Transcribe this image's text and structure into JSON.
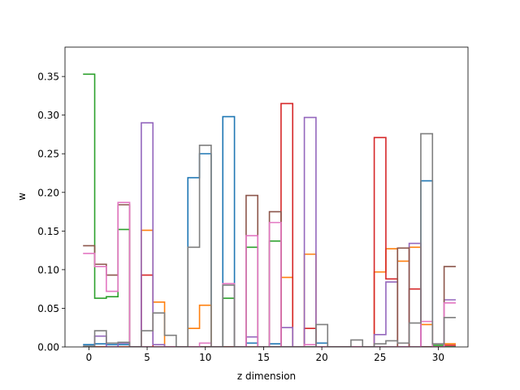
{
  "chart_data": {
    "type": "step",
    "xlabel": "z dimension",
    "ylabel": "w",
    "xlim": [
      -2.05,
      32.55
    ],
    "ylim": [
      0,
      0.388
    ],
    "x_ticks": [
      0,
      5,
      10,
      15,
      20,
      25,
      30
    ],
    "y_ticks": [
      0.0,
      0.05,
      0.1,
      0.15,
      0.2,
      0.25,
      0.3,
      0.35
    ],
    "grid": false,
    "x": [
      0,
      1,
      2,
      3,
      4,
      5,
      6,
      7,
      8,
      9,
      10,
      11,
      12,
      13,
      14,
      15,
      16,
      17,
      18,
      19,
      20,
      21,
      22,
      23,
      24,
      25,
      26,
      27,
      28,
      29,
      30,
      31
    ],
    "series": [
      {
        "color": "#1f77b4",
        "values": [
          0.003,
          0.004,
          0.003,
          0.003,
          0,
          0,
          0,
          0,
          0,
          0.219,
          0.25,
          0,
          0.298,
          0,
          0.005,
          0,
          0.004,
          0,
          0,
          0,
          0.005,
          0,
          0,
          0,
          0,
          0,
          0,
          0,
          0,
          0.215,
          0,
          0
        ]
      },
      {
        "color": "#ff7f0e",
        "values": [
          0,
          0,
          0,
          0,
          0,
          0.151,
          0.058,
          0,
          0,
          0.024,
          0.054,
          0,
          0,
          0,
          0,
          0,
          0,
          0.09,
          0,
          0.12,
          0,
          0,
          0,
          0,
          0,
          0.097,
          0.127,
          0.111,
          0.129,
          0.029,
          0,
          0.004
        ]
      },
      {
        "color": "#2ca02c",
        "values": [
          0.353,
          0.063,
          0.065,
          0.152,
          0,
          0,
          0,
          0,
          0,
          0,
          0,
          0,
          0.063,
          0,
          0.129,
          0,
          0.137,
          0,
          0,
          0,
          0,
          0,
          0,
          0,
          0,
          0,
          0,
          0,
          0,
          0,
          0.002,
          0
        ]
      },
      {
        "color": "#d62728",
        "values": [
          0,
          0,
          0,
          0,
          0,
          0.093,
          0,
          0,
          0,
          0,
          0,
          0,
          0,
          0,
          0,
          0,
          0,
          0.315,
          0,
          0.024,
          0,
          0,
          0,
          0,
          0,
          0.271,
          0.088,
          0,
          0.075,
          0,
          0,
          0.002
        ]
      },
      {
        "color": "#9467bd",
        "values": [
          0,
          0.014,
          0,
          0.005,
          0,
          0.29,
          0.003,
          0,
          0,
          0,
          0,
          0,
          0,
          0,
          0.013,
          0,
          0,
          0.025,
          0,
          0.297,
          0,
          0,
          0,
          0,
          0,
          0.016,
          0.084,
          0,
          0.134,
          0,
          0,
          0.061
        ]
      },
      {
        "color": "#8c564b",
        "values": [
          0.131,
          0.107,
          0.093,
          0.184,
          0,
          0,
          0,
          0,
          0,
          0,
          0,
          0,
          0,
          0,
          0.196,
          0,
          0.175,
          0,
          0,
          0,
          0,
          0,
          0,
          0,
          0,
          0,
          0,
          0.128,
          0,
          0,
          0,
          0.104
        ]
      },
      {
        "color": "#e377c2",
        "values": [
          0.121,
          0.104,
          0.072,
          0.187,
          0,
          0,
          0,
          0,
          0,
          0,
          0.005,
          0,
          0.082,
          0,
          0.144,
          0,
          0.161,
          0,
          0,
          0.003,
          0,
          0,
          0,
          0,
          0,
          0,
          0,
          0,
          0,
          0.033,
          0,
          0.057
        ]
      },
      {
        "color": "#7f7f7f",
        "values": [
          0.001,
          0.021,
          0.005,
          0.006,
          0,
          0.021,
          0.044,
          0.015,
          0,
          0.129,
          0.261,
          0,
          0.08,
          0,
          0,
          0,
          0,
          0,
          0,
          0,
          0.029,
          0,
          0,
          0.009,
          0,
          0.004,
          0.008,
          0.005,
          0.031,
          0.276,
          0.004,
          0.038
        ]
      }
    ]
  }
}
